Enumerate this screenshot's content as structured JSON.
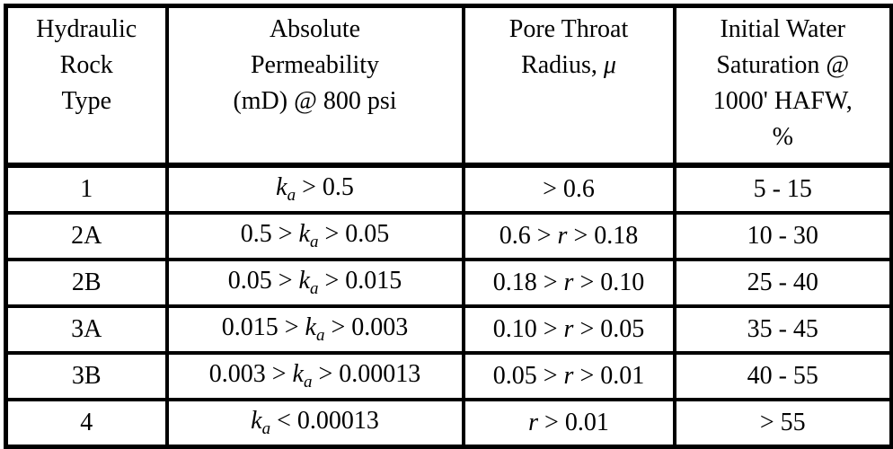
{
  "table": {
    "header": [
      [
        "Hydraulic",
        "Rock",
        "Type"
      ],
      [
        "Absolute",
        "Permeability",
        "(mD) @ 800 psi"
      ],
      [
        "Pore Throat",
        [
          "Radius, ",
          "μ"
        ]
      ],
      [
        "Initial Water",
        "Saturation @",
        "1000' HAFW,",
        "%"
      ]
    ],
    "rows": [
      [
        "1",
        [
          "k",
          "a",
          " > 0.5"
        ],
        "> 0.6",
        "5 - 15"
      ],
      [
        "2A",
        [
          "0.5 > ",
          "k",
          "a",
          " > 0.05"
        ],
        [
          "0.6 > ",
          "r",
          " > 0.18"
        ],
        "10 - 30"
      ],
      [
        "2B",
        [
          "0.05 > ",
          "k",
          "a",
          " > 0.015"
        ],
        [
          "0.18 > ",
          "r",
          " > 0.10"
        ],
        "25 - 40"
      ],
      [
        "3A",
        [
          "0.015 > ",
          "k",
          "a",
          " > 0.003"
        ],
        [
          "0.10 > ",
          "r",
          " > 0.05"
        ],
        "35 - 45"
      ],
      [
        "3B",
        [
          "0.003 > ",
          "k",
          "a",
          " > 0.00013"
        ],
        [
          "0.05 > ",
          "r",
          " > 0.01"
        ],
        "40 - 55"
      ],
      [
        "4",
        [
          "k",
          "a",
          " < 0.00013"
        ],
        [
          "r",
          " > 0.01"
        ],
        "> 55"
      ]
    ]
  }
}
